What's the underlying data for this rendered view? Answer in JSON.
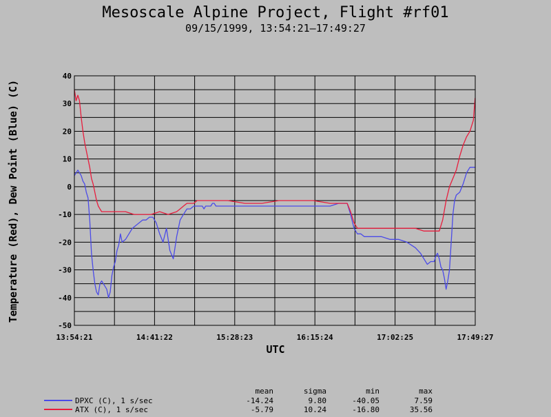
{
  "chart_data": {
    "type": "line",
    "title": "Mesoscale Alpine Project, Flight #rf01",
    "subtitle": "09/15/1999, 13:54:21–17:49:27",
    "xlabel": "UTC",
    "ylabel": "Temperature (Red), Dew Point (Blue) (C)",
    "ylim": [
      -50,
      40
    ],
    "yticks": [
      40,
      30,
      20,
      10,
      0,
      -10,
      -20,
      -30,
      -40,
      -50
    ],
    "xticks": [
      "13:54:21",
      "14:41:22",
      "15:28:23",
      "16:15:24",
      "17:02:25",
      "17:49:27"
    ],
    "xlim_minutes": [
      0,
      235.1
    ],
    "grid": true,
    "series": [
      {
        "name": "DPXC (C), 1 s/sec",
        "color": "#4a4ae8",
        "stats": {
          "mean": "-14.24",
          "sigma": "9.80",
          "min": "-40.05",
          "max": "7.59"
        },
        "x_minutes": [
          0,
          2,
          4,
          5,
          6,
          7,
          8,
          9,
          10,
          11,
          12,
          13,
          14,
          15,
          16,
          17,
          18,
          19,
          20,
          21,
          22,
          23,
          24,
          25,
          26,
          27,
          28,
          30,
          32,
          34,
          36,
          38,
          40,
          42,
          44,
          46,
          48,
          50,
          52,
          54,
          56,
          58,
          60,
          62,
          64,
          66,
          68,
          70,
          72,
          74,
          75,
          76,
          77,
          78,
          79,
          80,
          81,
          82,
          83,
          84,
          85,
          86,
          88,
          90,
          95,
          100,
          105,
          110,
          115,
          120,
          125,
          130,
          135,
          140,
          145,
          150,
          155,
          160,
          162,
          164,
          166,
          168,
          170,
          175,
          180,
          185,
          190,
          195,
          200,
          203,
          205,
          207,
          209,
          211,
          212,
          213,
          214,
          215,
          216,
          217,
          218,
          219,
          220,
          221,
          222,
          223,
          224,
          226,
          228,
          230,
          232,
          234,
          235
        ],
        "values": [
          4,
          6,
          4,
          2,
          1,
          -2,
          -4,
          -12,
          -24,
          -30,
          -35,
          -38,
          -39,
          -35,
          -34,
          -35,
          -36,
          -37,
          -40,
          -38,
          -32,
          -29,
          -27,
          -23,
          -21,
          -17,
          -20,
          -19,
          -17,
          -15,
          -14,
          -13,
          -12,
          -12,
          -11,
          -11,
          -13,
          -17,
          -20,
          -15,
          -23,
          -26,
          -18,
          -12,
          -10,
          -8,
          -8,
          -7,
          -7,
          -7,
          -7,
          -8,
          -7,
          -7,
          -7,
          -7,
          -6,
          -6,
          -7,
          -7,
          -7,
          -7,
          -7,
          -7,
          -7,
          -7,
          -7,
          -7,
          -7,
          -7,
          -7,
          -7,
          -7,
          -7,
          -7,
          -7,
          -6,
          -6,
          -10,
          -15,
          -17,
          -17,
          -18,
          -18,
          -18,
          -19,
          -19,
          -20,
          -22,
          -24,
          -26,
          -28,
          -27,
          -27,
          -25,
          -24,
          -26,
          -29,
          -30,
          -33,
          -37,
          -34,
          -30,
          -20,
          -10,
          -5,
          -3,
          -2,
          1,
          5,
          7,
          7,
          7
        ]
      },
      {
        "name": "ATX (C), 1 s/sec",
        "color": "#e81c3c",
        "stats": {
          "mean": "-5.79",
          "sigma": "10.24",
          "min": "-16.80",
          "max": "35.56"
        },
        "x_minutes": [
          0,
          1,
          2,
          3,
          4,
          5,
          6,
          7,
          8,
          9,
          10,
          11,
          12,
          13,
          14,
          15,
          16,
          17,
          18,
          20,
          25,
          30,
          35,
          40,
          45,
          50,
          55,
          60,
          62,
          64,
          66,
          68,
          70,
          72,
          74,
          76,
          80,
          90,
          100,
          110,
          120,
          130,
          140,
          150,
          155,
          160,
          162,
          164,
          166,
          168,
          170,
          180,
          190,
          200,
          205,
          210,
          214,
          216,
          218,
          220,
          222,
          224,
          226,
          228,
          230,
          232,
          234,
          235
        ],
        "values": [
          35,
          31,
          33,
          31,
          25,
          20,
          16,
          13,
          10,
          7,
          3,
          1,
          -2,
          -5,
          -7,
          -8,
          -9,
          -9,
          -9,
          -9,
          -9,
          -9,
          -10,
          -10,
          -10,
          -9,
          -10,
          -9,
          -8,
          -7,
          -6,
          -6,
          -6,
          -5,
          -5,
          -5,
          -5,
          -5,
          -6,
          -6,
          -5,
          -5,
          -5,
          -6,
          -6,
          -6,
          -9,
          -13,
          -15,
          -15,
          -15,
          -15,
          -15,
          -15,
          -16,
          -16,
          -16,
          -12,
          -5,
          0,
          3,
          6,
          11,
          15,
          18,
          20,
          24,
          32
        ]
      }
    ]
  },
  "legend_headers": {
    "mean": "mean",
    "sigma": "sigma",
    "min": "min",
    "max": "max"
  }
}
